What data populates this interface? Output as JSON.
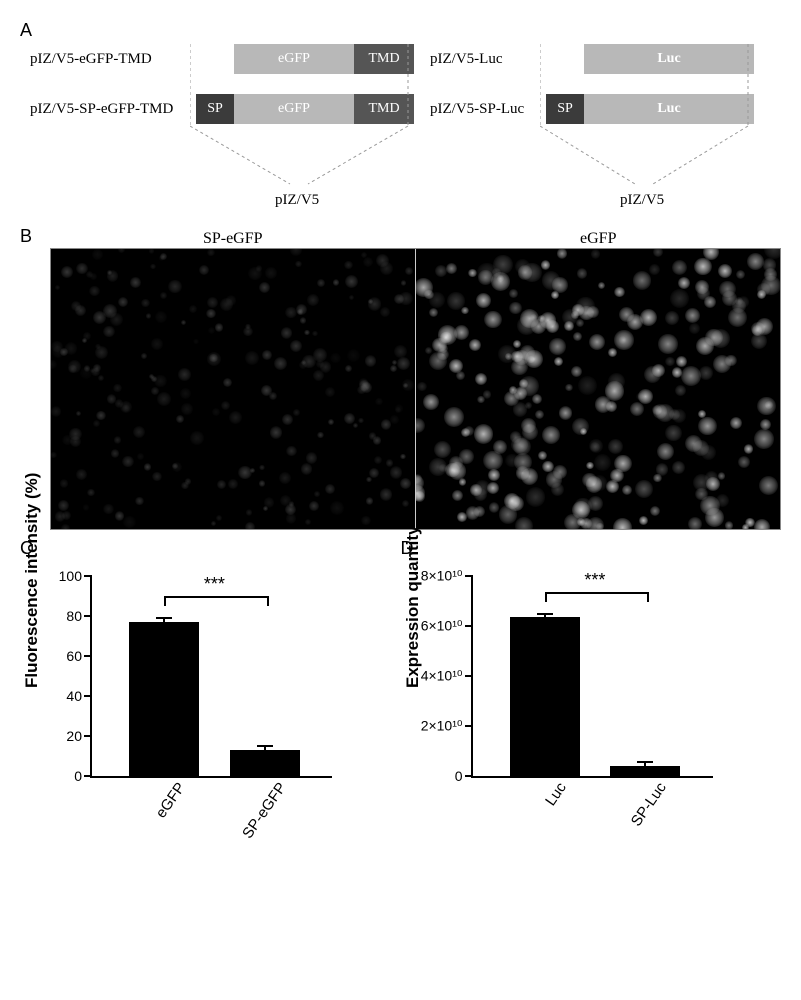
{
  "panelA": {
    "label": "A",
    "left": {
      "row1": {
        "name": "pIZ/V5-eGFP-TMD",
        "segments": [
          {
            "kind": "egfp",
            "text": "eGFP"
          },
          {
            "kind": "tmd",
            "text": "TMD"
          }
        ]
      },
      "row2": {
        "name": "pIZ/V5-SP-eGFP-TMD",
        "segments": [
          {
            "kind": "sp",
            "text": "SP"
          },
          {
            "kind": "egfp",
            "text": "eGFP"
          },
          {
            "kind": "tmd",
            "text": "TMD"
          }
        ]
      },
      "vector": "pIZ/V5"
    },
    "right": {
      "row1": {
        "name": "pIZ/V5-Luc",
        "segments": [
          {
            "kind": "luc",
            "text": "Luc"
          }
        ]
      },
      "row2": {
        "name": "pIZ/V5-SP-Luc",
        "segments": [
          {
            "kind": "sp",
            "text": "SP"
          },
          {
            "kind": "luc",
            "text": "Luc"
          }
        ]
      },
      "vector": "pIZ/V5"
    }
  },
  "panelB": {
    "label": "B",
    "left_title": "SP-eGFP",
    "right_title": "eGFP",
    "left_image": {
      "n_cells": 220,
      "brightness": 0.22,
      "size_min": 5,
      "size_max": 14
    },
    "right_image": {
      "n_cells": 260,
      "brightness": 0.75,
      "size_min": 7,
      "size_max": 20
    }
  },
  "panelC": {
    "label": "C",
    "type": "bar",
    "yaxis_title": "Fluorescence intensity (%)",
    "ylim": [
      0,
      100
    ],
    "yticks": [
      0,
      20,
      40,
      60,
      80,
      100
    ],
    "categories": [
      "eGFP",
      "SP-eGFP"
    ],
    "values": [
      77,
      13
    ],
    "errors": [
      2,
      2
    ],
    "bar_color": "#000000",
    "significance": "***",
    "tick_fontsize": 14,
    "axis_title_fontsize": 17
  },
  "panelD": {
    "label": "D",
    "type": "bar",
    "yaxis_title": "Expression quantity",
    "ylim": [
      0,
      80000000000.0
    ],
    "yticks": [
      0,
      20000000000.0,
      40000000000.0,
      60000000000.0,
      80000000000.0
    ],
    "ytick_labels": [
      "0",
      "2×10¹⁰",
      "4×10¹⁰",
      "6×10¹⁰",
      "8×10¹⁰"
    ],
    "categories": [
      "Luc",
      "SP-Luc"
    ],
    "values": [
      63500000000.0,
      4000000000.0
    ],
    "errors": [
      1500000000.0,
      1500000000.0
    ],
    "bar_color": "#000000",
    "significance": "***",
    "tick_fontsize": 14,
    "axis_title_fontsize": 17
  }
}
